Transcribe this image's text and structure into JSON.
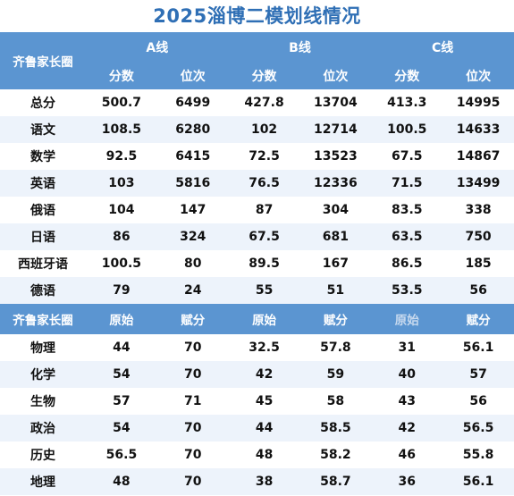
{
  "title": "2025淄博二模划线情况",
  "header": {
    "row_label": "齐鲁家长圈",
    "lines": [
      "A线",
      "B线",
      "C线"
    ],
    "sub_cols": [
      "分数",
      "位次"
    ]
  },
  "main_rows": [
    {
      "subject": "总分",
      "a_score": "500.7",
      "a_rank": "6499",
      "b_score": "427.8",
      "b_rank": "13704",
      "c_score": "413.3",
      "c_rank": "14995"
    },
    {
      "subject": "语文",
      "a_score": "108.5",
      "a_rank": "6280",
      "b_score": "102",
      "b_rank": "12714",
      "c_score": "100.5",
      "c_rank": "14633"
    },
    {
      "subject": "数学",
      "a_score": "92.5",
      "a_rank": "6415",
      "b_score": "72.5",
      "b_rank": "13523",
      "c_score": "67.5",
      "c_rank": "14867"
    },
    {
      "subject": "英语",
      "a_score": "103",
      "a_rank": "5816",
      "b_score": "76.5",
      "b_rank": "12336",
      "c_score": "71.5",
      "c_rank": "13499"
    },
    {
      "subject": "俄语",
      "a_score": "104",
      "a_rank": "147",
      "b_score": "87",
      "b_rank": "304",
      "c_score": "83.5",
      "c_rank": "338"
    },
    {
      "subject": "日语",
      "a_score": "86",
      "a_rank": "324",
      "b_score": "67.5",
      "b_rank": "681",
      "c_score": "63.5",
      "c_rank": "750"
    },
    {
      "subject": "西班牙语",
      "a_score": "100.5",
      "a_rank": "80",
      "b_score": "89.5",
      "b_rank": "167",
      "c_score": "86.5",
      "c_rank": "185"
    },
    {
      "subject": "德语",
      "a_score": "79",
      "a_rank": "24",
      "b_score": "55",
      "b_rank": "51",
      "c_score": "53.5",
      "c_rank": "56"
    }
  ],
  "sub_header": {
    "row_label": "齐鲁家长圈",
    "cols": [
      "原始",
      "赋分",
      "原始",
      "赋分",
      "原始",
      "赋分"
    ]
  },
  "elective_rows": [
    {
      "subject": "物理",
      "a_raw": "44",
      "a_assigned": "70",
      "b_raw": "32.5",
      "b_assigned": "57.8",
      "c_raw": "31",
      "c_assigned": "56.1"
    },
    {
      "subject": "化学",
      "a_raw": "54",
      "a_assigned": "70",
      "b_raw": "42",
      "b_assigned": "59",
      "c_raw": "40",
      "c_assigned": "57"
    },
    {
      "subject": "生物",
      "a_raw": "57",
      "a_assigned": "71",
      "b_raw": "45",
      "b_assigned": "58",
      "c_raw": "43",
      "c_assigned": "56"
    },
    {
      "subject": "政治",
      "a_raw": "54",
      "a_assigned": "70",
      "b_raw": "44",
      "b_assigned": "58.5",
      "c_raw": "42",
      "c_assigned": "56.5"
    },
    {
      "subject": "历史",
      "a_raw": "56.5",
      "a_assigned": "70",
      "b_raw": "48",
      "b_assigned": "58.2",
      "c_raw": "46",
      "c_assigned": "55.8"
    },
    {
      "subject": "地理",
      "a_raw": "48",
      "a_assigned": "70",
      "b_raw": "38",
      "b_assigned": "58.7",
      "c_raw": "36",
      "c_assigned": "56.1"
    }
  ]
}
